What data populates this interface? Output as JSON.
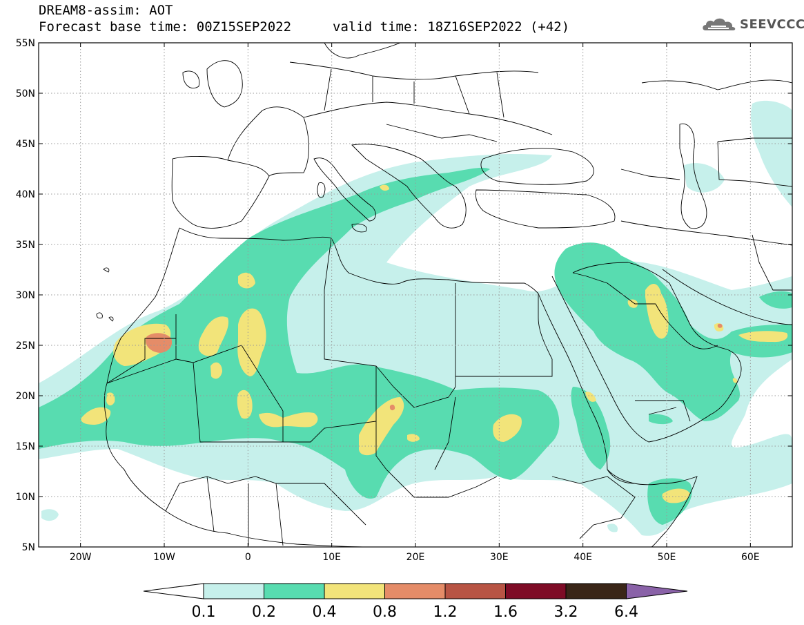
{
  "header": {
    "title": "DREAM8-assim: AOT",
    "base_time": "Forecast base time: 00Z15SEP2022",
    "valid_time": "valid time: 18Z16SEP2022 (+42)"
  },
  "logo": {
    "text": "SEEVCCC",
    "icon": "cloud-icon"
  },
  "map": {
    "projection": "lat-lon",
    "lon_range": [
      -25,
      65
    ],
    "lat_range": [
      5,
      55
    ],
    "lat_ticks": [
      "55N",
      "50N",
      "45N",
      "40N",
      "35N",
      "30N",
      "25N",
      "20N",
      "15N",
      "10N",
      "5N"
    ],
    "lon_ticks": [
      "20W",
      "10W",
      "0",
      "10E",
      "20E",
      "30E",
      "40E",
      "50E",
      "60E"
    ]
  },
  "colorbar": {
    "labels": [
      "0.1",
      "0.2",
      "0.4",
      "0.8",
      "1.2",
      "1.6",
      "3.2",
      "6.4"
    ],
    "colors": [
      "#ffffff",
      "#c6f0eb",
      "#58dcb0",
      "#f2e47a",
      "#e58c68",
      "#b85444",
      "#7e0c26",
      "#3a2618",
      "#8a62a8"
    ]
  }
}
